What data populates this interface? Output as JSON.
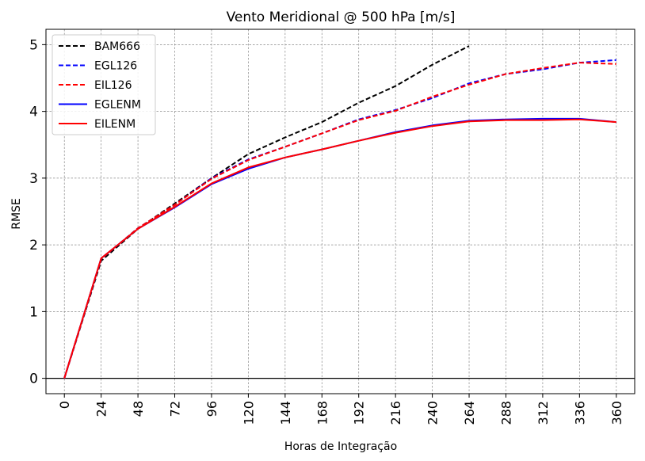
{
  "chart_data": {
    "type": "line",
    "title": "Vento Meridional @ 500 hPa [m/s]",
    "xlabel": "Horas de Integração",
    "ylabel": "RMSE",
    "xlim": [
      -12,
      372
    ],
    "ylim": [
      -0.23,
      5.23
    ],
    "x_ticks": [
      0,
      24,
      48,
      72,
      96,
      120,
      144,
      168,
      192,
      216,
      240,
      264,
      288,
      312,
      336,
      360
    ],
    "y_ticks": [
      0,
      1,
      2,
      3,
      4,
      5
    ],
    "grid": true,
    "legend_position": "top-left",
    "series": [
      {
        "name": "BAM666",
        "color": "#000000",
        "dash": true,
        "x": [
          0,
          24,
          48,
          72,
          96,
          120,
          144,
          168,
          192,
          216,
          240,
          264
        ],
        "y": [
          0.0,
          1.76,
          2.24,
          2.62,
          3.0,
          3.36,
          3.61,
          3.84,
          4.13,
          4.38,
          4.7,
          4.98
        ]
      },
      {
        "name": "EGL126",
        "color": "#0000ff",
        "dash": true,
        "x": [
          0,
          24,
          48,
          72,
          96,
          120,
          144,
          168,
          192,
          216,
          240,
          264,
          288,
          312,
          336,
          360
        ],
        "y": [
          0.0,
          1.79,
          2.25,
          2.6,
          3.0,
          3.28,
          3.47,
          3.67,
          3.88,
          4.02,
          4.2,
          4.42,
          4.56,
          4.63,
          4.73,
          4.77
        ]
      },
      {
        "name": "EIL126",
        "color": "#ff0000",
        "dash": true,
        "x": [
          0,
          24,
          48,
          72,
          96,
          120,
          144,
          168,
          192,
          216,
          240,
          264,
          288,
          312,
          336,
          360
        ],
        "y": [
          0.0,
          1.79,
          2.25,
          2.6,
          2.99,
          3.27,
          3.47,
          3.67,
          3.87,
          4.01,
          4.22,
          4.4,
          4.56,
          4.65,
          4.73,
          4.71
        ]
      },
      {
        "name": "EGLENM",
        "color": "#0000ff",
        "dash": false,
        "x": [
          0,
          24,
          48,
          72,
          96,
          120,
          144,
          168,
          192,
          216,
          240,
          264,
          288,
          312,
          336,
          360
        ],
        "y": [
          0.0,
          1.8,
          2.24,
          2.56,
          2.91,
          3.14,
          3.31,
          3.43,
          3.56,
          3.69,
          3.79,
          3.86,
          3.88,
          3.89,
          3.89,
          3.84
        ]
      },
      {
        "name": "EILENM",
        "color": "#ff0000",
        "dash": false,
        "x": [
          0,
          24,
          48,
          72,
          96,
          120,
          144,
          168,
          192,
          216,
          240,
          264,
          288,
          312,
          336,
          360
        ],
        "y": [
          0.0,
          1.8,
          2.24,
          2.57,
          2.92,
          3.16,
          3.31,
          3.43,
          3.56,
          3.68,
          3.78,
          3.85,
          3.87,
          3.87,
          3.88,
          3.84
        ]
      }
    ]
  }
}
